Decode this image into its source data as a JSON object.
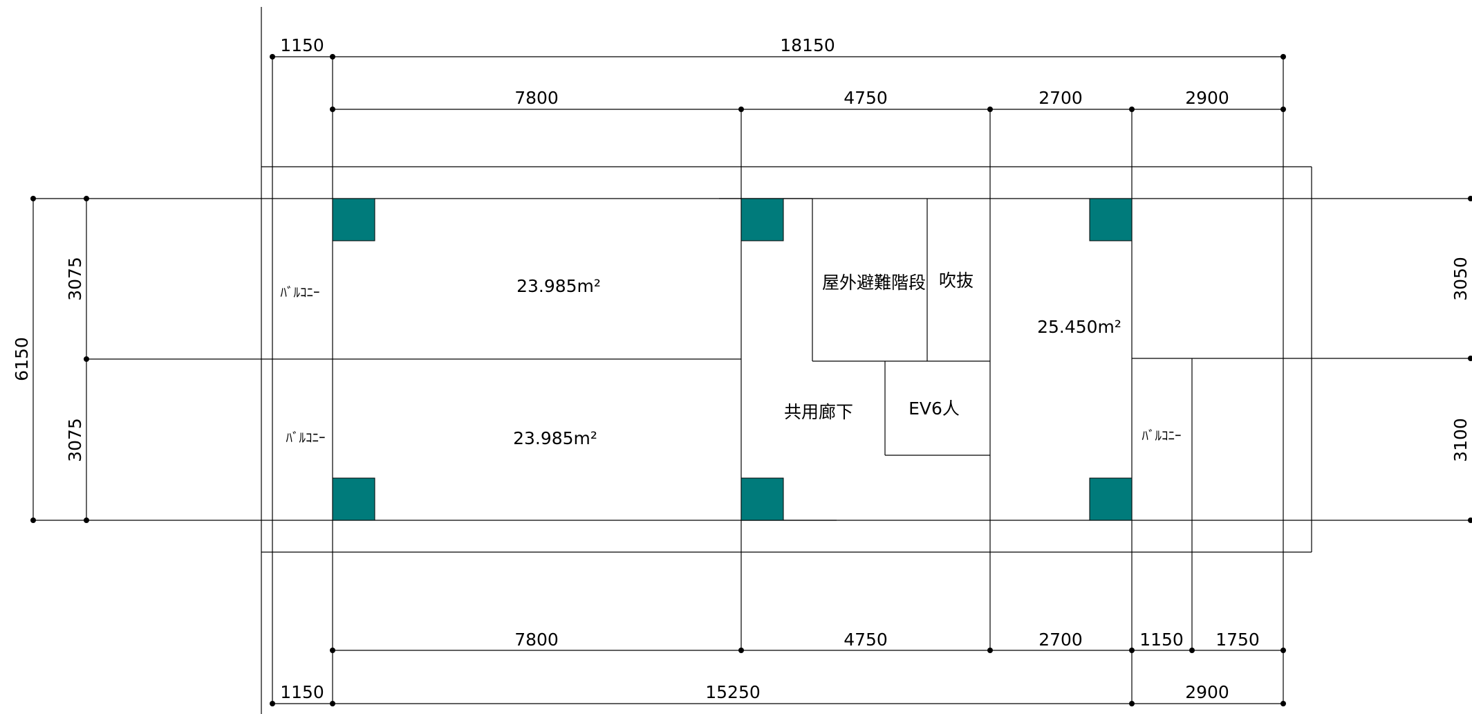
{
  "plan": {
    "dims_top_outer": [
      "1150",
      "18150"
    ],
    "dims_top_inner": [
      "7800",
      "4750",
      "2700",
      "2900"
    ],
    "dims_bottom_inner": [
      "7800",
      "4750",
      "2700",
      "1150",
      "1750"
    ],
    "dims_bottom_outer": [
      "1150",
      "15250",
      "2900"
    ],
    "dims_left_total": "6150",
    "dims_left_parts": [
      "3075",
      "3075"
    ],
    "dims_right_parts": [
      "3050",
      "3100"
    ],
    "rooms": {
      "unit_a_upper": "23.985m²",
      "unit_a_lower": "23.985m²",
      "unit_b": "25.450m²",
      "outdoor_stair": "屋外避難階段",
      "void": "吹抜",
      "elevator": "EV6人",
      "corridor": "共用廊下",
      "balcony_upper": "ﾊﾞﾙｺﾆｰ",
      "balcony_lower": "ﾊﾞﾙｺﾆｰ",
      "balcony_right": "ﾊﾞﾙｺﾆｰ"
    },
    "colors": {
      "column": "#007b7b",
      "line": "#000000",
      "background": "#ffffff"
    }
  }
}
